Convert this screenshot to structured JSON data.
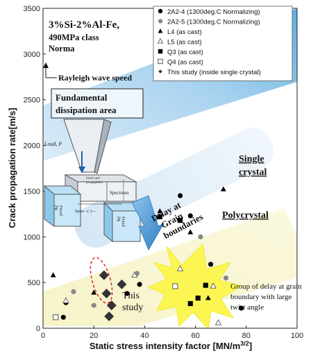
{
  "chart_data": {
    "type": "scatter",
    "xlabel": "Static stress intensity factor [MN/m",
    "xlabel_sup": "3/2",
    "xlabel_end": "]",
    "ylabel": "Crack propagation rate[m/s]",
    "xlim": [
      0,
      100
    ],
    "ylim": [
      0,
      3500
    ],
    "x_ticks": [
      "0",
      "20",
      "40",
      "60",
      "80",
      "100"
    ],
    "y_ticks": [
      "0",
      "500",
      "1000",
      "1500",
      "2000",
      "2500",
      "3000",
      "3500"
    ],
    "material_title": [
      "3%Si-2%Al-Fe,",
      "490MPa class",
      "Norma"
    ],
    "series": [
      {
        "name": "2A2-4 (1300deg.C Normalizing)",
        "marker": "circle",
        "color": "#000000",
        "points": [
          [
            8,
            120
          ],
          [
            9,
            280
          ],
          [
            33,
            380
          ],
          [
            38,
            480
          ],
          [
            54,
            1450
          ],
          [
            58,
            1230
          ],
          [
            66,
            700
          ],
          [
            78,
            220
          ]
        ]
      },
      {
        "name": "2A2-5 (1300deg.C Normalizing)",
        "marker": "circle",
        "color": "#888888",
        "points": [
          [
            12,
            400
          ],
          [
            20,
            250
          ],
          [
            37,
            600
          ],
          [
            62,
            1000
          ],
          [
            72,
            550
          ]
        ]
      },
      {
        "name": "L4 (as cast)",
        "marker": "triangle",
        "color": "#000000",
        "points": [
          [
            4,
            580
          ],
          [
            20,
            390
          ],
          [
            46,
            1280
          ],
          [
            58,
            1050
          ],
          [
            65,
            330
          ],
          [
            71,
            1520
          ]
        ]
      },
      {
        "name": "L5 (as cast)",
        "marker": "triangle-open",
        "color": "#000000",
        "points": [
          [
            9,
            300
          ],
          [
            36,
            580
          ],
          [
            54,
            650
          ],
          [
            67,
            460
          ],
          [
            69,
            60
          ]
        ]
      },
      {
        "name": "Q3 (as cast)",
        "marker": "square",
        "color": "#000000",
        "points": [
          [
            46,
            1220
          ],
          [
            54,
            1180
          ],
          [
            58,
            270
          ],
          [
            61,
            330
          ],
          [
            64,
            470
          ]
        ]
      },
      {
        "name": "Q4 (as cast)",
        "marker": "square-open",
        "color": "#000000",
        "points": [
          [
            5,
            120
          ],
          [
            52,
            460
          ]
        ]
      },
      {
        "name": "This study (inside single crystal)",
        "marker": "diamond",
        "color": "#333333",
        "points": [
          [
            24,
            580
          ],
          [
            25,
            380
          ],
          [
            27,
            250
          ],
          [
            26,
            130
          ],
          [
            31,
            480
          ]
        ]
      }
    ],
    "annotations": {
      "rayleigh": "Rayleigh wave speed",
      "fundamental": [
        "Fundamental",
        "dissipation area"
      ],
      "single_crystal": [
        "Single",
        "crystal"
      ],
      "polycrystal": "Polycrystal",
      "delay": [
        "Delay at",
        "Grain",
        "boundaries"
      ],
      "this_study": [
        "This",
        "study"
      ],
      "group_delay": [
        "Group of delay at grain",
        "boundary with large",
        "twist angle"
      ],
      "load": "Load, P",
      "specimen": "Specimen",
      "fixed_jig": [
        "Fixed",
        "jig"
      ],
      "span": "Span—(·)—",
      "device_label": [
        "Insert and",
        "propagation"
      ]
    }
  }
}
